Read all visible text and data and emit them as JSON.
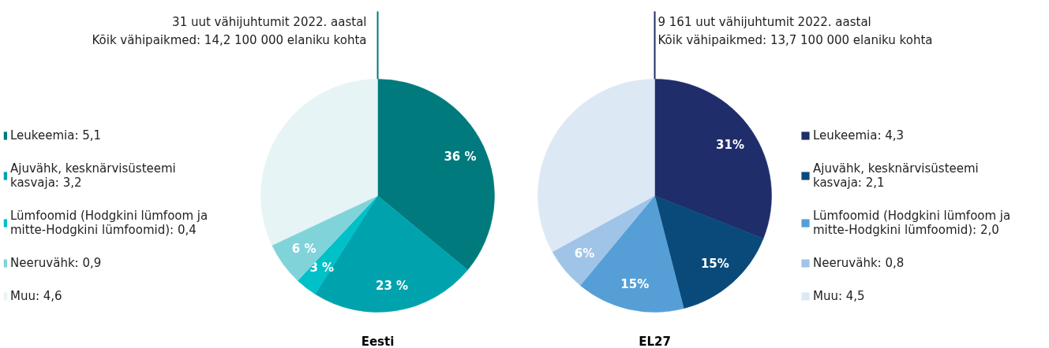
{
  "chart_data": [
    {
      "type": "pie",
      "title": "31 uut vähijuhtumit 2022. aastal",
      "subtitle": "Kõik vähipaikmed: 14,2 100 000 elaniku kohta",
      "xlabel": "Eesti",
      "legend": "left",
      "categories": [
        "Leukeemia: 5,1",
        "Ajuvähk, kesknärvisüsteemi kasvaja: 3,2",
        "Lümfoomid (Hodgkini lümfoom ja mitte-Hodgkini lümfoomid): 0,4",
        "Neeruvähk: 0,9",
        "Muu: 4,6"
      ],
      "values": [
        36,
        23,
        3,
        6,
        32
      ],
      "colors": [
        "#007a7c",
        "#00a3ad",
        "#00c0c8",
        "#80d4d9",
        "#e6f4f5"
      ],
      "value_labels": [
        "36 %",
        "23 %",
        "3 %",
        "6 %",
        null
      ]
    },
    {
      "type": "pie",
      "title": "9 161 uut vähijuhtumit 2022. aastal",
      "subtitle": "Kõik vähipaikmed: 13,7 100 000 elaniku kohta",
      "xlabel": "EL27",
      "legend": "right",
      "categories": [
        "Leukeemia: 4,3",
        "Ajuvähk, kesknärvisüsteemi kasvaja: 2,1",
        "Lümfoomid (Hodgkini lümfoom ja mitte-Hodgkini lümfoomid): 2,0",
        "Neeruvähk: 0,8",
        "Muu: 4,5"
      ],
      "values": [
        31,
        15,
        15,
        6,
        33
      ],
      "colors": [
        "#1f2d6b",
        "#0a4a7a",
        "#559fd6",
        "#a0c4e8",
        "#dde8f5"
      ],
      "value_labels": [
        "31%",
        "15%",
        "15%",
        "6%",
        null
      ]
    }
  ]
}
